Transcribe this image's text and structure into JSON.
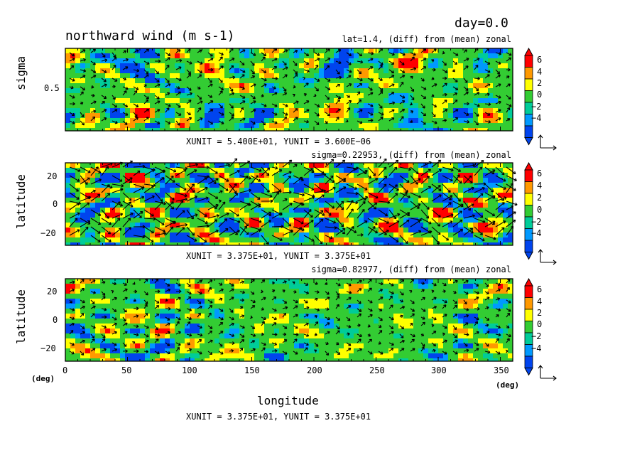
{
  "header": {
    "day_label": "day=0.0",
    "title": "northward wind (m s-1)"
  },
  "colorbar": {
    "labels": [
      "6",
      "4",
      "2",
      "0",
      "−2",
      "−4"
    ],
    "colors": [
      "#ff0000",
      "#ff9900",
      "#ffff00",
      "#33cc33",
      "#00cc99",
      "#0099ff",
      "#0044ee"
    ]
  },
  "panels": [
    {
      "subtitle": "lat=1.4, (diff) from (mean) zonal",
      "ylabel": "sigma",
      "ytick_labels": [
        "0.5"
      ],
      "unit_text": "XUNIT = 5.400E+01, YUNIT = 3.600E−06"
    },
    {
      "subtitle": "sigma=0.22953, (diff) from (mean) zonal",
      "ylabel": "latitude",
      "ytick_labels": [
        "20",
        "0",
        "−20"
      ],
      "unit_text": "XUNIT = 3.375E+01, YUNIT = 3.375E+01"
    },
    {
      "subtitle": "sigma=0.82977, (diff) from (mean) zonal",
      "ylabel": "latitude",
      "ytick_labels": [
        "20",
        "0",
        "−20"
      ],
      "unit_text": "XUNIT = 3.375E+01, YUNIT = 3.375E+01"
    }
  ],
  "xaxis": {
    "tick_labels": [
      "0",
      "50",
      "100",
      "150",
      "200",
      "250",
      "300",
      "350"
    ],
    "deg_left": "(deg)",
    "deg_right": "(deg)",
    "label": "longitude"
  },
  "chart_data": {
    "type": "heatmap",
    "title": "northward wind (m s-1)",
    "color_levels": [
      -4,
      -2,
      0,
      2,
      4,
      6
    ],
    "panels": [
      {
        "subtitle": "lat=1.4, (diff) from (mean) zonal",
        "xlim": [
          0,
          360
        ],
        "ylim": [
          1.0,
          0.0
        ],
        "ylabel": "sigma",
        "xlabel": "longitude",
        "yticks": [
          0.5
        ],
        "vectors": true
      },
      {
        "subtitle": "sigma=0.22953, (diff) from (mean) zonal",
        "xlim": [
          0,
          360
        ],
        "ylim": [
          -30,
          30
        ],
        "ylabel": "latitude",
        "xlabel": "longitude",
        "yticks": [
          20,
          0,
          -20
        ],
        "vectors": true
      },
      {
        "subtitle": "sigma=0.82977, (diff) from (mean) zonal",
        "xlim": [
          0,
          360
        ],
        "ylim": [
          -30,
          30
        ],
        "ylabel": "latitude",
        "xlabel": "longitude",
        "yticks": [
          20,
          0,
          -20
        ],
        "xticks": [
          0,
          50,
          100,
          150,
          200,
          250,
          300,
          350
        ],
        "vectors": true
      }
    ]
  }
}
